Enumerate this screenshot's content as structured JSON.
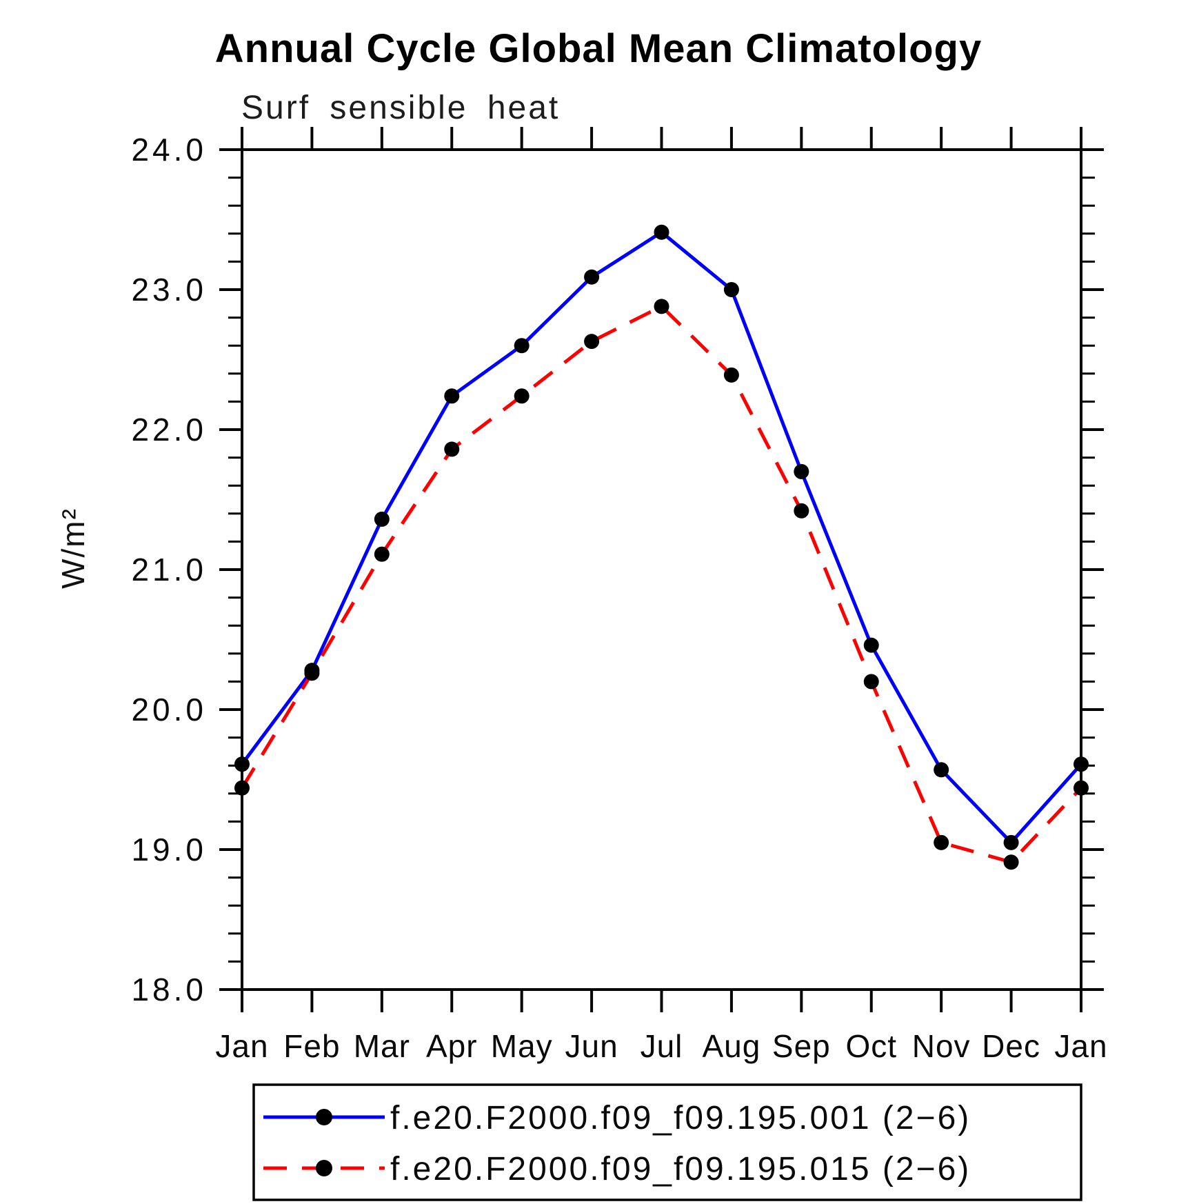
{
  "chart_data": {
    "type": "line",
    "title": "Annual Cycle Global Mean Climatology",
    "subtitle": "Surf sensible heat",
    "ylabel": "W/m²",
    "xlabel": "",
    "categories": [
      "Jan",
      "Feb",
      "Mar",
      "Apr",
      "May",
      "Jun",
      "Jul",
      "Aug",
      "Sep",
      "Oct",
      "Nov",
      "Dec",
      "Jan"
    ],
    "ylim": [
      18.0,
      24.0
    ],
    "y_major_step": 1.0,
    "y_minor_step": 0.2,
    "y_tick_labels": [
      "18.0",
      "19.0",
      "20.0",
      "21.0",
      "22.0",
      "23.0",
      "24.0"
    ],
    "grid": false,
    "legend_position": "bottom",
    "marker": "filled-circle",
    "marker_color": "#000000",
    "axis_color": "#000000",
    "series": [
      {
        "name": "f.e20.F2000.f09_f09.195.001 (2−6)",
        "color": "#0000ff",
        "style": "solid",
        "values": [
          19.61,
          20.28,
          21.36,
          22.24,
          22.6,
          23.09,
          23.41,
          23.0,
          21.7,
          20.46,
          19.57,
          19.05,
          19.61
        ]
      },
      {
        "name": "f.e20.F2000.f09_f09.195.015 (2−6)",
        "color": "#ff0000",
        "style": "dashed",
        "values": [
          19.44,
          20.26,
          21.11,
          21.86,
          22.24,
          22.63,
          22.88,
          22.39,
          21.42,
          20.2,
          19.05,
          18.91,
          19.44
        ]
      }
    ]
  }
}
